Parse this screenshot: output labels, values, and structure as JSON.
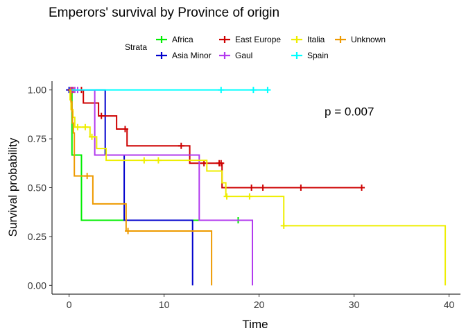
{
  "chart_data": {
    "type": "line",
    "title": "Emperors' survival by Province of origin",
    "xlabel": "Time",
    "ylabel": "Survival probability",
    "xlim": [
      -1.8,
      41.2
    ],
    "ylim": [
      -0.045,
      1.045
    ],
    "x_ticks": [
      0,
      10,
      20,
      30,
      40
    ],
    "y_ticks": [
      0.0,
      0.25,
      0.5,
      0.75,
      1.0
    ],
    "x_tick_labels": [
      "0",
      "10",
      "20",
      "30",
      "40"
    ],
    "y_tick_labels": [
      "0.00",
      "0.25",
      "0.50",
      "0.75",
      "1.00"
    ],
    "grid": false,
    "legend_title": "Strata",
    "legend_position": "top",
    "annotation": "p = 0.007",
    "annotation_pos": [
      29.5,
      0.89
    ],
    "series": [
      {
        "name": "Africa",
        "color": "#00EE00",
        "steps": [
          [
            0,
            1.0
          ],
          [
            0.3,
            0.667
          ],
          [
            1.3,
            0.333
          ],
          [
            17.8,
            0.333
          ]
        ],
        "censors": [
          [
            17.8,
            0.333
          ]
        ]
      },
      {
        "name": "Asia Minor",
        "color": "#0000CD",
        "steps": [
          [
            0,
            1.0
          ],
          [
            3.8,
            0.667
          ],
          [
            5.8,
            0.333
          ],
          [
            13.0,
            0.0
          ]
        ],
        "censors": [
          [
            0,
            1.0
          ]
        ]
      },
      {
        "name": "East Europe",
        "color": "#CD0000",
        "steps": [
          [
            0,
            1.0
          ],
          [
            1.5,
            0.933
          ],
          [
            3.1,
            0.867
          ],
          [
            5.0,
            0.8
          ],
          [
            6.1,
            0.714
          ],
          [
            12.7,
            0.625
          ],
          [
            16.1,
            0.5
          ],
          [
            30.8,
            0.5
          ]
        ],
        "censors": [
          [
            0.2,
            1.0
          ],
          [
            0.4,
            1.0
          ],
          [
            1.3,
            1.0
          ],
          [
            3.4,
            0.867
          ],
          [
            5.9,
            0.8
          ],
          [
            11.8,
            0.714
          ],
          [
            14.2,
            0.625
          ],
          [
            15.8,
            0.625
          ],
          [
            16.0,
            0.625
          ],
          [
            19.2,
            0.5
          ],
          [
            20.4,
            0.5
          ],
          [
            24.4,
            0.5
          ],
          [
            30.8,
            0.5
          ]
        ]
      },
      {
        "name": "Gaul",
        "color": "#B23AEE",
        "steps": [
          [
            0,
            1.0
          ],
          [
            2.7,
            0.667
          ],
          [
            13.7,
            0.333
          ],
          [
            19.3,
            0.0
          ]
        ],
        "censors": [
          [
            0.3,
            1.0
          ],
          [
            0.6,
            1.0
          ],
          [
            0.9,
            1.0
          ]
        ]
      },
      {
        "name": "Italia",
        "color": "#EEEE00",
        "steps": [
          [
            0,
            1.0
          ],
          [
            0.1,
            0.95
          ],
          [
            0.2,
            0.9
          ],
          [
            0.4,
            0.86
          ],
          [
            0.6,
            0.81
          ],
          [
            2.2,
            0.76
          ],
          [
            2.9,
            0.7
          ],
          [
            3.9,
            0.64
          ],
          [
            14.5,
            0.585
          ],
          [
            16.1,
            0.525
          ],
          [
            16.5,
            0.455
          ],
          [
            22.6,
            0.305
          ],
          [
            39.6,
            0.0
          ]
        ],
        "censors": [
          [
            0.9,
            0.81
          ],
          [
            1.7,
            0.81
          ],
          [
            2.4,
            0.76
          ],
          [
            7.9,
            0.64
          ],
          [
            9.4,
            0.64
          ],
          [
            16.6,
            0.455
          ],
          [
            19.0,
            0.455
          ],
          [
            22.6,
            0.305
          ]
        ]
      },
      {
        "name": "Spain",
        "color": "#00FFFF",
        "steps": [
          [
            0,
            1.0
          ],
          [
            20.9,
            1.0
          ]
        ],
        "censors": [
          [
            16.0,
            1.0
          ],
          [
            19.4,
            1.0
          ],
          [
            20.9,
            1.0
          ]
        ]
      },
      {
        "name": "Unknown",
        "color": "#EE9A00",
        "steps": [
          [
            0,
            1.0
          ],
          [
            0.2,
            0.94
          ],
          [
            0.3,
            0.89
          ],
          [
            0.35,
            0.83
          ],
          [
            0.45,
            0.78
          ],
          [
            0.55,
            0.56
          ],
          [
            2.5,
            0.417
          ],
          [
            6.0,
            0.278
          ],
          [
            15.0,
            0.0
          ]
        ],
        "censors": [
          [
            1.9,
            0.56
          ],
          [
            6.2,
            0.278
          ]
        ]
      }
    ]
  }
}
